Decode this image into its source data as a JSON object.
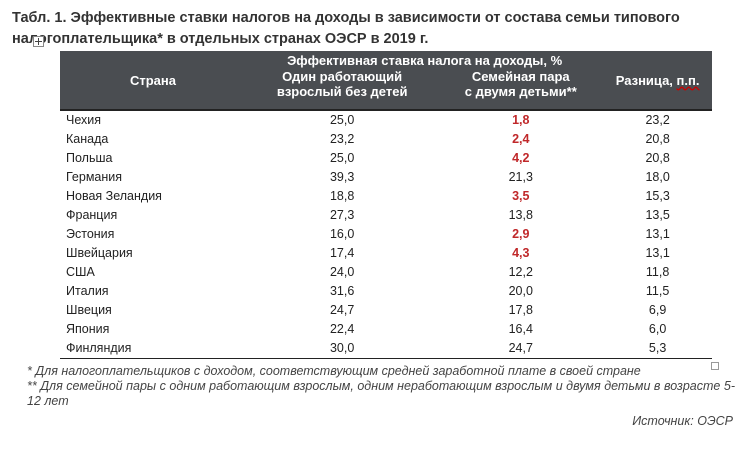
{
  "title": "Табл. 1. Эффективные ставки налогов на доходы в зависимости от состава семьи типового налогоплательщика* в отдельных странах ОЭСР в 2019 г.",
  "header": {
    "country": "Страна",
    "group": "Эффективная ставка налога на доходы, %",
    "single_l1": "Один работающий",
    "single_l2": "взрослый без детей",
    "family_l1": "Семейная пара",
    "family_l2": "с двумя детьми**",
    "diff_prefix": "Разница, ",
    "diff_unit": "п.п."
  },
  "rows": [
    {
      "country": "Чехия",
      "single": "25,0",
      "family": "1,8",
      "diff": "23,2",
      "highlight": true
    },
    {
      "country": "Канада",
      "single": "23,2",
      "family": "2,4",
      "diff": "20,8",
      "highlight": true
    },
    {
      "country": "Польша",
      "single": "25,0",
      "family": "4,2",
      "diff": "20,8",
      "highlight": true
    },
    {
      "country": "Германия",
      "single": "39,3",
      "family": "21,3",
      "diff": "18,0",
      "highlight": false
    },
    {
      "country": "Новая Зеландия",
      "single": "18,8",
      "family": "3,5",
      "diff": "15,3",
      "highlight": true
    },
    {
      "country": "Франция",
      "single": "27,3",
      "family": "13,8",
      "diff": "13,5",
      "highlight": false
    },
    {
      "country": "Эстония",
      "single": "16,0",
      "family": "2,9",
      "diff": "13,1",
      "highlight": true
    },
    {
      "country": "Швейцария",
      "single": "17,4",
      "family": "4,3",
      "diff": "13,1",
      "highlight": true
    },
    {
      "country": "США",
      "single": "24,0",
      "family": "12,2",
      "diff": "11,8",
      "highlight": false
    },
    {
      "country": "Италия",
      "single": "31,6",
      "family": "20,0",
      "diff": "11,5",
      "highlight": false
    },
    {
      "country": "Швеция",
      "single": "24,7",
      "family": "17,8",
      "diff": "6,9",
      "highlight": false
    },
    {
      "country": "Япония",
      "single": "22,4",
      "family": "16,4",
      "diff": "6,0",
      "highlight": false
    },
    {
      "country": "Финляндия",
      "single": "30,0",
      "family": "24,7",
      "diff": "5,3",
      "highlight": false
    }
  ],
  "notes": {
    "n1": "* Для налогоплательщиков с доходом, соответствующим средней заработной плате в своей стране",
    "n2": "** Для семейной пары с одним работающим взрослым, одним неработающим взрослым и двумя детьми в возрасте 5-12 лет"
  },
  "source": "Источник: ОЭСР",
  "colors": {
    "header_bg": "#4a4d51",
    "highlight": "#c0282a"
  }
}
